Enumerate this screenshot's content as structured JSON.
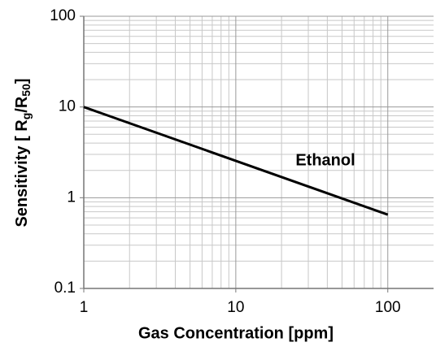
{
  "chart_data": {
    "type": "line",
    "xlabel": "Gas Concentration [ppm]",
    "ylabel": [
      "Sensitivity [ R",
      "g",
      "/R",
      "50",
      "]"
    ],
    "x": [
      1,
      100
    ],
    "series": [
      {
        "name": "Ethanol",
        "color": "#000000",
        "values": [
          10,
          0.65
        ]
      }
    ],
    "xlim": [
      1,
      200
    ],
    "xticks": [
      1,
      10,
      100
    ],
    "ylim": [
      0.1,
      100
    ],
    "yticks": [
      0.1,
      1,
      10,
      100
    ],
    "xlog": true,
    "ylog": true,
    "grid": true,
    "minor_grid": true
  }
}
